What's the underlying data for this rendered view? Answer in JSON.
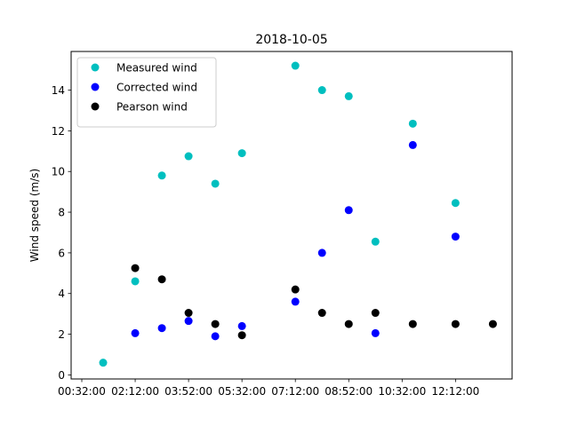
{
  "chart_data": {
    "type": "scatter",
    "title": "2018-10-05",
    "xlabel": "",
    "ylabel": "Wind speed (m/s)",
    "xlim": [
      "00:12:00",
      "13:58:00"
    ],
    "ylim": [
      -0.2,
      15.9
    ],
    "x_ticks": [
      "00:32:00",
      "02:12:00",
      "03:52:00",
      "05:32:00",
      "07:12:00",
      "08:52:00",
      "10:32:00",
      "12:12:00"
    ],
    "y_ticks": [
      0,
      2,
      4,
      6,
      8,
      10,
      12,
      14
    ],
    "grid": false,
    "legend_position": "top-left",
    "series": [
      {
        "name": "Measured wind",
        "color": "#00bfbf",
        "points": [
          {
            "x": "01:12:00",
            "y": 0.6
          },
          {
            "x": "02:12:00",
            "y": 4.6
          },
          {
            "x": "03:02:00",
            "y": 9.8
          },
          {
            "x": "03:52:00",
            "y": 10.75
          },
          {
            "x": "04:42:00",
            "y": 9.4
          },
          {
            "x": "05:32:00",
            "y": 10.9
          },
          {
            "x": "07:12:00",
            "y": 15.2
          },
          {
            "x": "08:02:00",
            "y": 14.0
          },
          {
            "x": "08:52:00",
            "y": 13.7
          },
          {
            "x": "09:42:00",
            "y": 6.55
          },
          {
            "x": "10:52:00",
            "y": 12.35
          },
          {
            "x": "12:12:00",
            "y": 8.45
          }
        ]
      },
      {
        "name": "Corrected wind",
        "color": "#0000ff",
        "points": [
          {
            "x": "02:12:00",
            "y": 2.05
          },
          {
            "x": "03:02:00",
            "y": 2.3
          },
          {
            "x": "03:52:00",
            "y": 2.65
          },
          {
            "x": "04:42:00",
            "y": 1.9
          },
          {
            "x": "05:32:00",
            "y": 2.4
          },
          {
            "x": "07:12:00",
            "y": 3.6
          },
          {
            "x": "08:02:00",
            "y": 6.0
          },
          {
            "x": "08:52:00",
            "y": 8.1
          },
          {
            "x": "09:42:00",
            "y": 2.05
          },
          {
            "x": "10:52:00",
            "y": 11.3
          },
          {
            "x": "12:12:00",
            "y": 6.8
          }
        ]
      },
      {
        "name": "Pearson wind",
        "color": "#000000",
        "points": [
          {
            "x": "02:12:00",
            "y": 5.25
          },
          {
            "x": "03:02:00",
            "y": 4.7
          },
          {
            "x": "03:52:00",
            "y": 3.05
          },
          {
            "x": "04:42:00",
            "y": 2.5
          },
          {
            "x": "05:32:00",
            "y": 1.95
          },
          {
            "x": "07:12:00",
            "y": 4.2
          },
          {
            "x": "08:02:00",
            "y": 3.05
          },
          {
            "x": "08:52:00",
            "y": 2.5
          },
          {
            "x": "09:42:00",
            "y": 3.05
          },
          {
            "x": "10:52:00",
            "y": 2.5
          },
          {
            "x": "12:12:00",
            "y": 2.5
          },
          {
            "x": "13:22:00",
            "y": 2.5
          }
        ]
      }
    ]
  }
}
